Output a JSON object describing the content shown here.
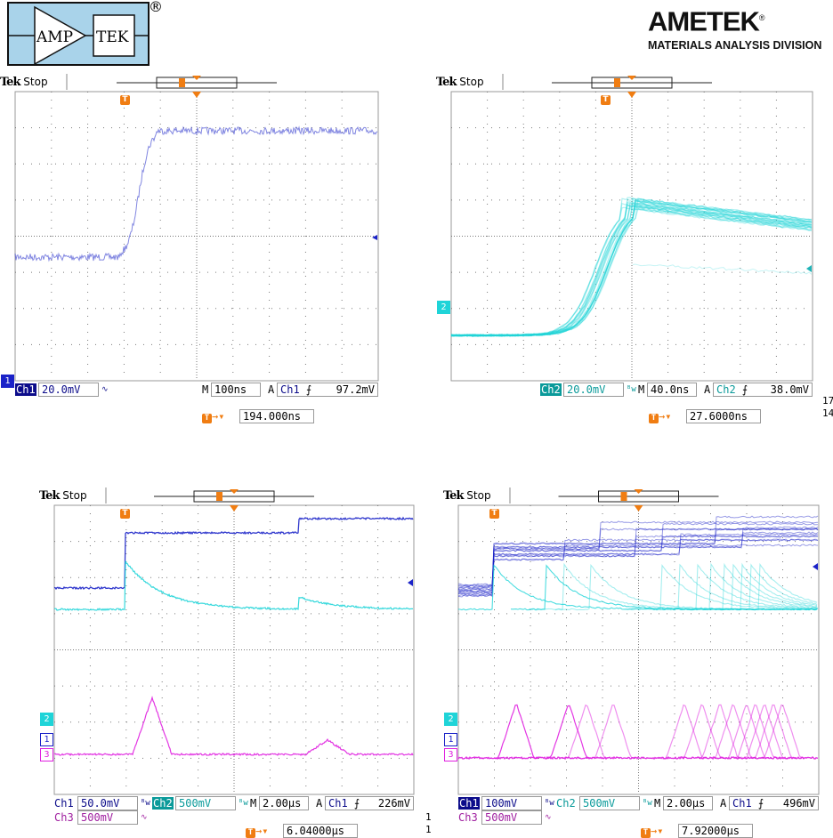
{
  "logos": {
    "amptek_left": "AMP",
    "amptek_right": "TEK",
    "registered": "®",
    "ametek": "AMETEK",
    "ametek_reg": "®",
    "division": "MATERIALS ANALYSIS DIVISION"
  },
  "colors": {
    "ch1": "#1a22c8",
    "ch2": "#1fd4d8",
    "ch3": "#e020e0",
    "trigger": "#f07d12",
    "ch1_label": "#0c0c8a",
    "ch2_label": "#0a9a9a",
    "ch3_label": "#a020a0"
  },
  "scopes": [
    {
      "brand": "Tek",
      "status": "Stop",
      "ch": [
        {
          "name": "Ch1",
          "scale": "20.0mV",
          "coupling": "∿"
        }
      ],
      "timebase_prefix": "M",
      "timebase": "100ns",
      "trig_mode": "A",
      "trig_ch": "Ch1",
      "trig_slope": "⨍",
      "trig_level": "97.2mV",
      "trig_pos": "194.000ns",
      "trig_icon": "T",
      "marker": "1"
    },
    {
      "brand": "Tek",
      "status": "Stop",
      "ch": [
        {
          "name": "Ch2",
          "scale": "20.0mV",
          "coupling": "ᴮw"
        }
      ],
      "timebase_prefix": "M",
      "timebase": "40.0ns",
      "trig_mode": "A",
      "trig_ch": "Ch2",
      "trig_slope": "⨍",
      "trig_level": "38.0mV",
      "trig_pos": "27.6000ns",
      "trig_icon": "T",
      "marker": "2"
    },
    {
      "brand": "Tek",
      "status": "Stop",
      "ch": [
        {
          "name": "Ch1",
          "scale": "50.0mV",
          "coupling": "ᴮw"
        },
        {
          "name": "Ch2",
          "scale": "500mV",
          "coupling": "ᴮw"
        },
        {
          "name": "Ch3",
          "scale": "500mV",
          "coupling": "∿"
        }
      ],
      "timebase_prefix": "M",
      "timebase": "2.00µs",
      "trig_mode": "A",
      "trig_ch": "Ch1",
      "trig_slope": "⨍",
      "trig_level": "226mV",
      "trig_pos": "6.04000µs",
      "trig_icon": "T",
      "markers": [
        "2",
        "1",
        "3"
      ]
    },
    {
      "brand": "Tek",
      "status": "Stop",
      "ch": [
        {
          "name": "Ch1",
          "scale": "100mV",
          "coupling": "ᴮw"
        },
        {
          "name": "Ch2",
          "scale": "500mV",
          "coupling": "ᴮw"
        },
        {
          "name": "Ch3",
          "scale": "500mV",
          "coupling": "∿"
        }
      ],
      "timebase_prefix": "M",
      "timebase": "2.00µs",
      "trig_mode": "A",
      "trig_ch": "Ch1",
      "trig_slope": "⨍",
      "trig_level": "496mV",
      "trig_pos": "7.92000µs",
      "trig_icon": "T",
      "markers": [
        "2",
        "1",
        "3"
      ]
    }
  ],
  "margin_fragments": [
    "17",
    "14",
    "1",
    "1"
  ]
}
